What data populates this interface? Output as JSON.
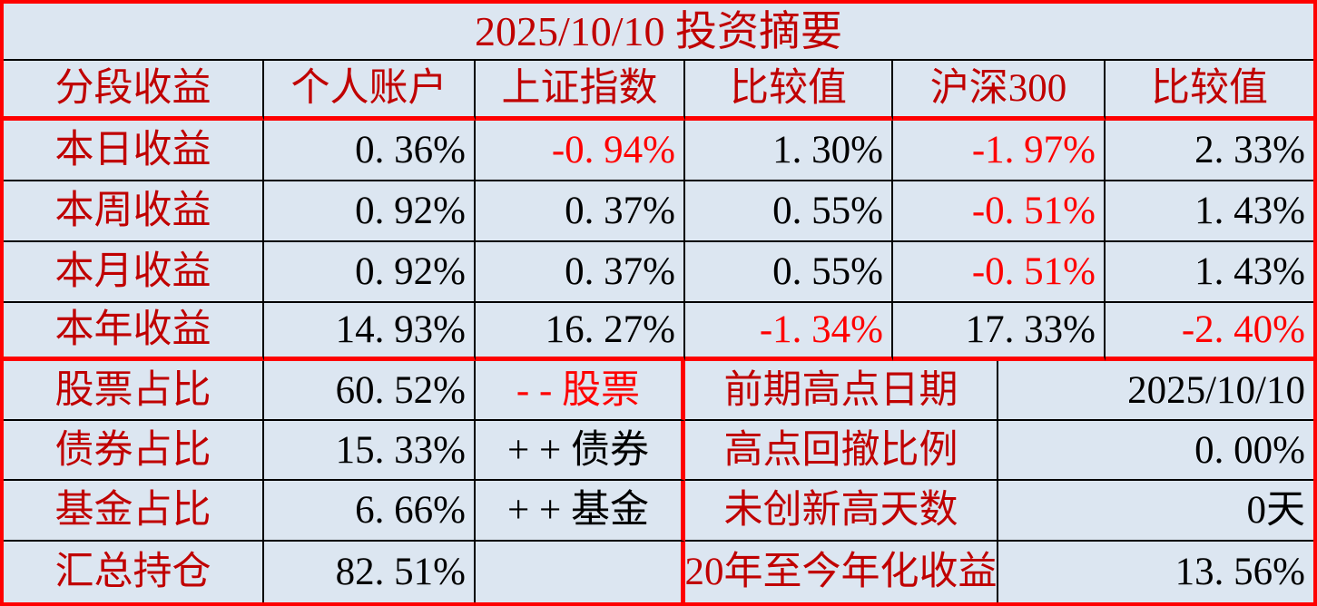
{
  "title": "2025/10/10 投资摘要",
  "performance": {
    "headers": [
      "分段收益",
      "个人账户",
      "上证指数",
      "比较值",
      "沪深300",
      "比较值"
    ],
    "rows": [
      {
        "label": "本日收益",
        "values": [
          "0. 36%",
          "-0. 94%",
          "1. 30%",
          "-1. 97%",
          "2. 33%"
        ]
      },
      {
        "label": "本周收益",
        "values": [
          "0. 92%",
          "0. 37%",
          "0. 55%",
          "-0. 51%",
          "1. 43%"
        ]
      },
      {
        "label": "本月收益",
        "values": [
          "0. 92%",
          "0. 37%",
          "0. 55%",
          "-0. 51%",
          "1. 43%"
        ]
      },
      {
        "label": "本年收益",
        "values": [
          "14. 93%",
          "16. 27%",
          "-1. 34%",
          "17. 33%",
          "-2. 40%"
        ]
      }
    ]
  },
  "allocation": {
    "rows": [
      {
        "label": "股票占比",
        "value": "60. 52%",
        "note": "- - 股票"
      },
      {
        "label": "债券占比",
        "value": "15. 33%",
        "note": "+ + 债券"
      },
      {
        "label": "基金占比",
        "value": "6. 66%",
        "note": "+ + 基金"
      },
      {
        "label": "汇总持仓",
        "value": "82. 51%",
        "note": ""
      }
    ]
  },
  "stats": {
    "rows": [
      {
        "label": "前期高点日期",
        "value": "2025/10/10"
      },
      {
        "label": "高点回撤比例",
        "value": "0. 00%"
      },
      {
        "label": "未创新高天数",
        "value": "0天"
      },
      {
        "label": "20年至今年化收益",
        "value": "13. 56%"
      }
    ]
  },
  "colors": {
    "background": "#dce6f1",
    "label_red": "#c00000",
    "negative_red": "#fe0000",
    "value_black": "#000000",
    "border_thick": "#fe0000",
    "border_thin": "#000000"
  }
}
